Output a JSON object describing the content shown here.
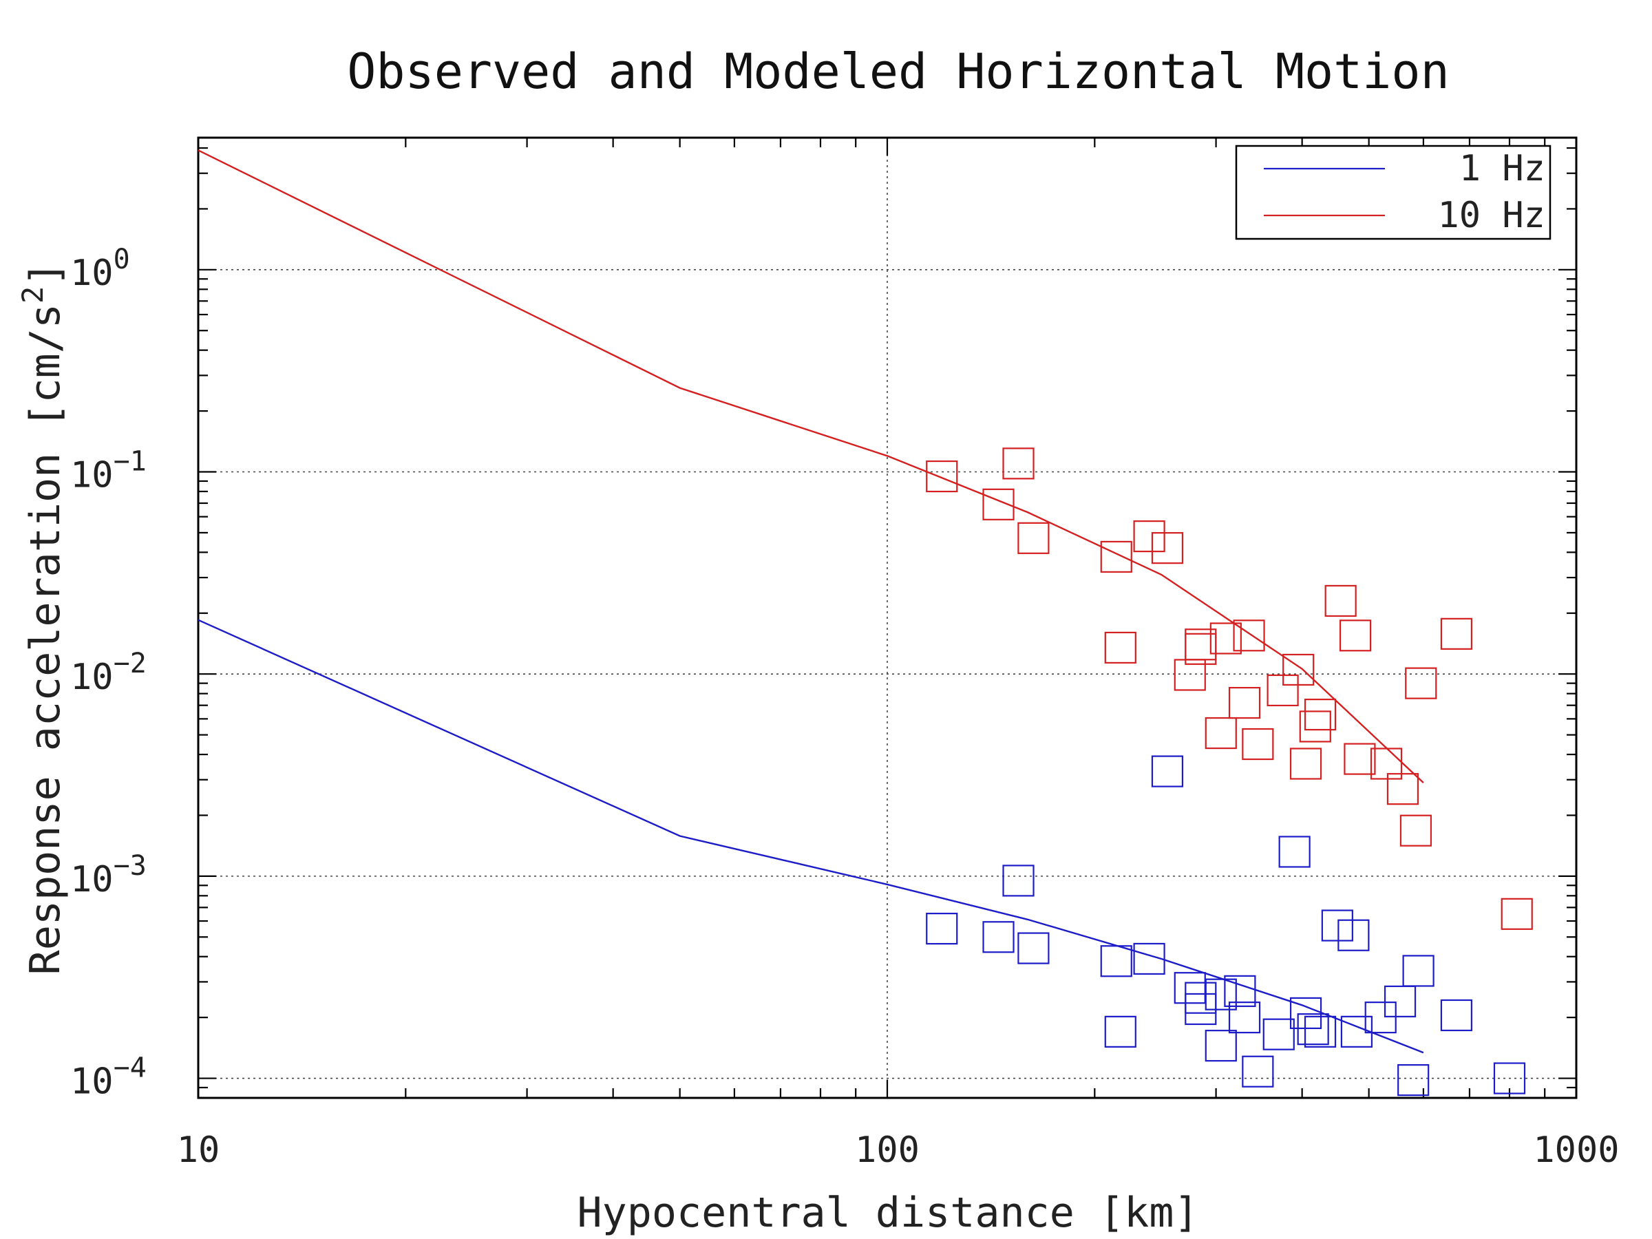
{
  "chart_data": {
    "type": "scatter",
    "title": "Observed and Modeled Horizontal Motion",
    "xlabel": "Hypocentral distance [km]",
    "ylabel": "Response acceleration [cm/s",
    "ylabel_sup": "2",
    "ylabel_end": "]",
    "x_scale": "log",
    "y_scale": "log",
    "xlim": [
      10,
      1000
    ],
    "ylim": [
      8e-05,
      4.5
    ],
    "x_ticks": [
      {
        "value": 10,
        "label": "10"
      },
      {
        "value": 100,
        "label": "100"
      },
      {
        "value": 1000,
        "label": "1000"
      }
    ],
    "y_ticks": [
      {
        "value": 1,
        "label_base": "10",
        "label_exp": "0"
      },
      {
        "value": 0.1,
        "label_base": "10",
        "label_exp": "−1"
      },
      {
        "value": 0.01,
        "label_base": "10",
        "label_exp": "−2"
      },
      {
        "value": 0.001,
        "label_base": "10",
        "label_exp": "−3"
      },
      {
        "value": 0.0001,
        "label_base": "10",
        "label_exp": "−4"
      }
    ],
    "grid": true,
    "legend_position": "top-right",
    "series": [
      {
        "name": "1 Hz",
        "color": "#1c1cc8",
        "line": [
          {
            "x": 10,
            "y": 0.0185
          },
          {
            "x": 50,
            "y": 0.00158
          },
          {
            "x": 100,
            "y": 0.00091
          },
          {
            "x": 160,
            "y": 0.00061
          },
          {
            "x": 250,
            "y": 0.00039
          },
          {
            "x": 400,
            "y": 0.00023
          },
          {
            "x": 600,
            "y": 0.000134
          }
        ],
        "points": [
          {
            "x": 120,
            "y": 0.00055
          },
          {
            "x": 145,
            "y": 0.0005
          },
          {
            "x": 155,
            "y": 0.00095
          },
          {
            "x": 163,
            "y": 0.00044
          },
          {
            "x": 215,
            "y": 0.00038
          },
          {
            "x": 218,
            "y": 0.00017
          },
          {
            "x": 240,
            "y": 0.00039
          },
          {
            "x": 255,
            "y": 0.0033
          },
          {
            "x": 275,
            "y": 0.00028
          },
          {
            "x": 285,
            "y": 0.00025
          },
          {
            "x": 285,
            "y": 0.00022
          },
          {
            "x": 305,
            "y": 0.00026
          },
          {
            "x": 305,
            "y": 0.000145
          },
          {
            "x": 325,
            "y": 0.00027
          },
          {
            "x": 330,
            "y": 0.0002
          },
          {
            "x": 345,
            "y": 0.000108
          },
          {
            "x": 370,
            "y": 0.000165
          },
          {
            "x": 390,
            "y": 0.00132
          },
          {
            "x": 405,
            "y": 0.00021
          },
          {
            "x": 415,
            "y": 0.000175
          },
          {
            "x": 425,
            "y": 0.00017
          },
          {
            "x": 450,
            "y": 0.00057
          },
          {
            "x": 475,
            "y": 0.00051
          },
          {
            "x": 480,
            "y": 0.00017
          },
          {
            "x": 520,
            "y": 0.0002
          },
          {
            "x": 555,
            "y": 0.00024
          },
          {
            "x": 580,
            "y": 9.8e-05
          },
          {
            "x": 590,
            "y": 0.00034
          },
          {
            "x": 670,
            "y": 0.000205
          },
          {
            "x": 800,
            "y": 0.0001
          }
        ]
      },
      {
        "name": "10 Hz",
        "color": "#d42020",
        "line": [
          {
            "x": 10,
            "y": 3.9
          },
          {
            "x": 50,
            "y": 0.26
          },
          {
            "x": 100,
            "y": 0.12
          },
          {
            "x": 160,
            "y": 0.063
          },
          {
            "x": 250,
            "y": 0.031
          },
          {
            "x": 400,
            "y": 0.0106
          },
          {
            "x": 600,
            "y": 0.0029
          }
        ],
        "points": [
          {
            "x": 120,
            "y": 0.095
          },
          {
            "x": 145,
            "y": 0.069
          },
          {
            "x": 155,
            "y": 0.11
          },
          {
            "x": 163,
            "y": 0.047
          },
          {
            "x": 215,
            "y": 0.038
          },
          {
            "x": 218,
            "y": 0.0135
          },
          {
            "x": 240,
            "y": 0.048
          },
          {
            "x": 255,
            "y": 0.042
          },
          {
            "x": 275,
            "y": 0.0099
          },
          {
            "x": 285,
            "y": 0.0133
          },
          {
            "x": 285,
            "y": 0.014
          },
          {
            "x": 305,
            "y": 0.0051
          },
          {
            "x": 310,
            "y": 0.015
          },
          {
            "x": 330,
            "y": 0.0072
          },
          {
            "x": 335,
            "y": 0.0155
          },
          {
            "x": 345,
            "y": 0.0045
          },
          {
            "x": 375,
            "y": 0.0083
          },
          {
            "x": 395,
            "y": 0.0105
          },
          {
            "x": 405,
            "y": 0.0036
          },
          {
            "x": 418,
            "y": 0.0055
          },
          {
            "x": 425,
            "y": 0.0063
          },
          {
            "x": 455,
            "y": 0.023
          },
          {
            "x": 478,
            "y": 0.0155
          },
          {
            "x": 485,
            "y": 0.0038
          },
          {
            "x": 530,
            "y": 0.0036
          },
          {
            "x": 560,
            "y": 0.0027
          },
          {
            "x": 585,
            "y": 0.00168
          },
          {
            "x": 595,
            "y": 0.009
          },
          {
            "x": 670,
            "y": 0.0158
          },
          {
            "x": 820,
            "y": 0.00065
          }
        ]
      }
    ]
  }
}
